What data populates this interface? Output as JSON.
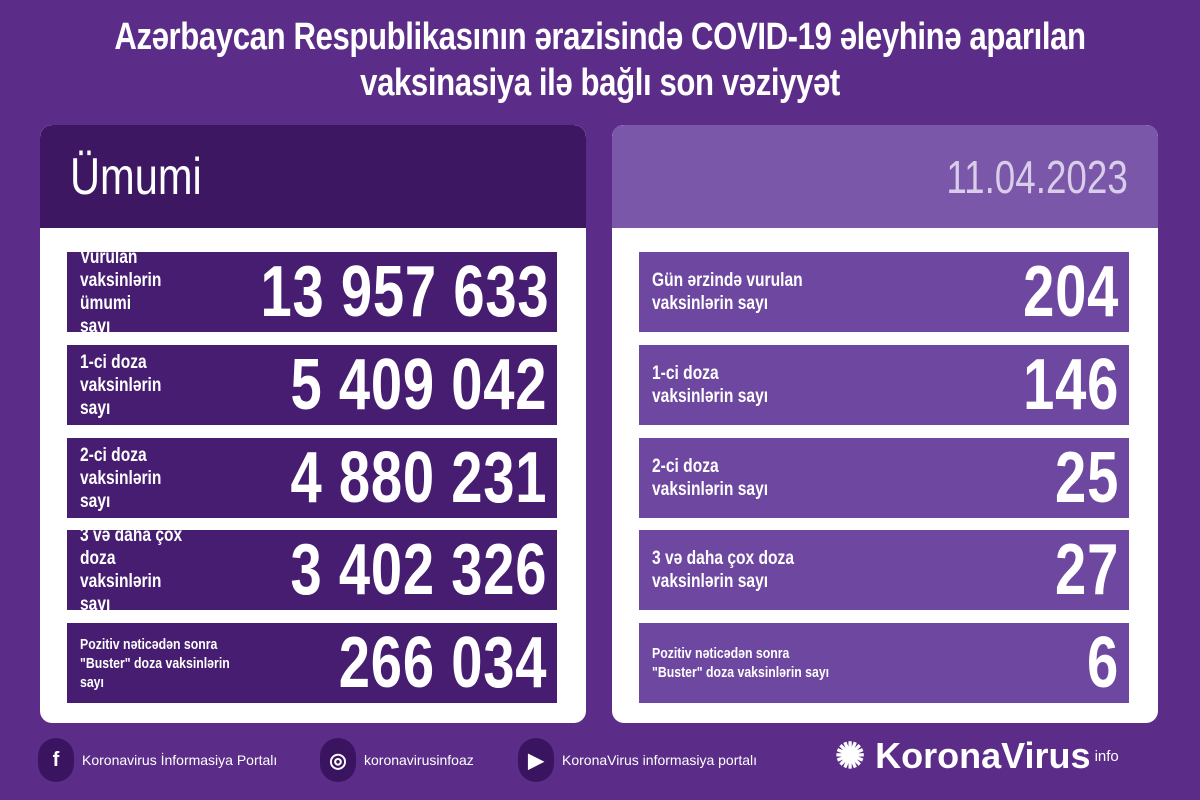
{
  "title": {
    "line1": "Azərbaycan Respublikasının ərazisində COVID-19 əleyhinə aparılan",
    "line2": "vaksinasiya ilə bağlı son vəziyyət"
  },
  "left": {
    "header": "Ümumi",
    "rows": [
      {
        "label": "Vurulan vaksinlərin\nümumi sayı",
        "value": "13 957 633"
      },
      {
        "label": "1-ci doza\nvaksinlərin sayı",
        "value": "5 409 042"
      },
      {
        "label": "2-ci doza\nvaksinlərin sayı",
        "value": "4 880 231"
      },
      {
        "label": "3 və daha çox doza\nvaksinlərin sayı",
        "value": "3 402 326"
      },
      {
        "label": "Pozitiv nəticədən sonra\n\"Buster\" doza vaksinlərin sayı",
        "value": "266 034"
      }
    ]
  },
  "right": {
    "header": "11.04.2023",
    "rows": [
      {
        "label": "Gün ərzində vurulan\nvaksinlərin sayı",
        "value": "204"
      },
      {
        "label": "1-ci doza\nvaksinlərin sayı",
        "value": "146"
      },
      {
        "label": "2-ci doza\nvaksinlərin sayı",
        "value": "25"
      },
      {
        "label": "3 və daha çox doza\nvaksinlərin sayı",
        "value": "27"
      },
      {
        "label": "Pozitiv nəticədən sonra\n\"Buster\" doza vaksinlərin sayı",
        "value": "6"
      }
    ]
  },
  "footer": {
    "facebook": "Koronavirus İnformasiya Portalı",
    "instagram": "koronavirusinfoaz",
    "youtube": "KoronaVirus informasiya portalı",
    "brand": "KoronaVirus",
    "brand_sup": "info"
  },
  "colors": {
    "background": "#5b2d88",
    "left_row": "#461d70",
    "right_row": "#6e47a1"
  }
}
